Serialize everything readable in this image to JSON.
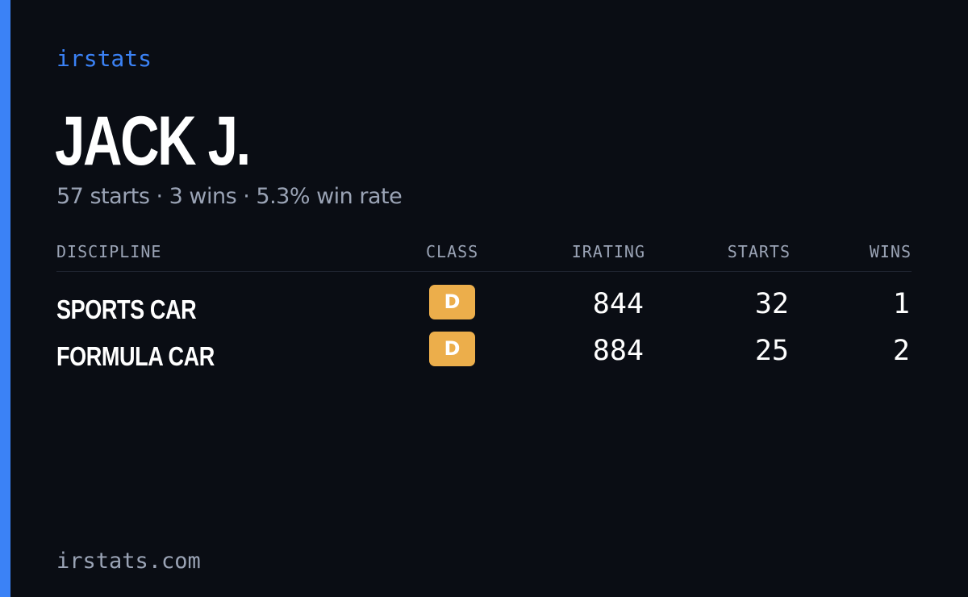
{
  "brand": "irstats",
  "player": {
    "name": "JACK J.",
    "summary": "57 starts · 3 wins · 5.3% win rate"
  },
  "table": {
    "headers": {
      "discipline": "DISCIPLINE",
      "class": "CLASS",
      "irating": "IRATING",
      "starts": "STARTS",
      "wins": "WINS"
    },
    "rows": [
      {
        "discipline": "SPORTS CAR",
        "class": "D",
        "irating": "844",
        "starts": "32",
        "wins": "1"
      },
      {
        "discipline": "FORMULA CAR",
        "class": "D",
        "irating": "884",
        "starts": "25",
        "wins": "2"
      }
    ]
  },
  "footer": {
    "url": "irstats.com"
  },
  "colors": {
    "background": "#0a0d14",
    "accent": "#3b82f6",
    "class_d": "#ecae4b",
    "muted_text": "#9aa3b5"
  }
}
